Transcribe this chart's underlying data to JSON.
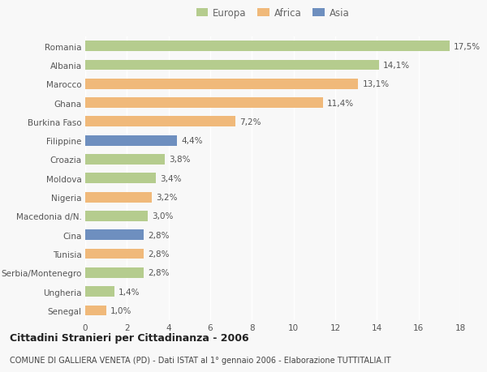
{
  "categories": [
    "Romania",
    "Albania",
    "Marocco",
    "Ghana",
    "Burkina Faso",
    "Filippine",
    "Croazia",
    "Moldova",
    "Nigeria",
    "Macedonia d/N.",
    "Cina",
    "Tunisia",
    "Serbia/Montenegro",
    "Ungheria",
    "Senegal"
  ],
  "values": [
    17.5,
    14.1,
    13.1,
    11.4,
    7.2,
    4.4,
    3.8,
    3.4,
    3.2,
    3.0,
    2.8,
    2.8,
    2.8,
    1.4,
    1.0
  ],
  "labels": [
    "17,5%",
    "14,1%",
    "13,1%",
    "11,4%",
    "7,2%",
    "4,4%",
    "3,8%",
    "3,4%",
    "3,2%",
    "3,0%",
    "2,8%",
    "2,8%",
    "2,8%",
    "1,4%",
    "1,0%"
  ],
  "continents": [
    "Europa",
    "Europa",
    "Africa",
    "Africa",
    "Africa",
    "Asia",
    "Europa",
    "Europa",
    "Africa",
    "Europa",
    "Asia",
    "Africa",
    "Europa",
    "Europa",
    "Africa"
  ],
  "colors": {
    "Europa": "#b5cc8e",
    "Africa": "#f0b97a",
    "Asia": "#6e8fbf"
  },
  "xlim": [
    0,
    18
  ],
  "xticks": [
    0,
    2,
    4,
    6,
    8,
    10,
    12,
    14,
    16,
    18
  ],
  "title": "Cittadini Stranieri per Cittadinanza - 2006",
  "subtitle": "COMUNE DI GALLIERA VENETA (PD) - Dati ISTAT al 1° gennaio 2006 - Elaborazione TUTTITALIA.IT",
  "background_color": "#f8f8f8",
  "plot_bg_color": "#f0f0f0",
  "bar_height": 0.55,
  "grid_color": "#ffffff",
  "label_fontsize": 7.5,
  "ytick_fontsize": 7.5,
  "xtick_fontsize": 7.5,
  "title_fontsize": 9.0,
  "subtitle_fontsize": 7.0
}
